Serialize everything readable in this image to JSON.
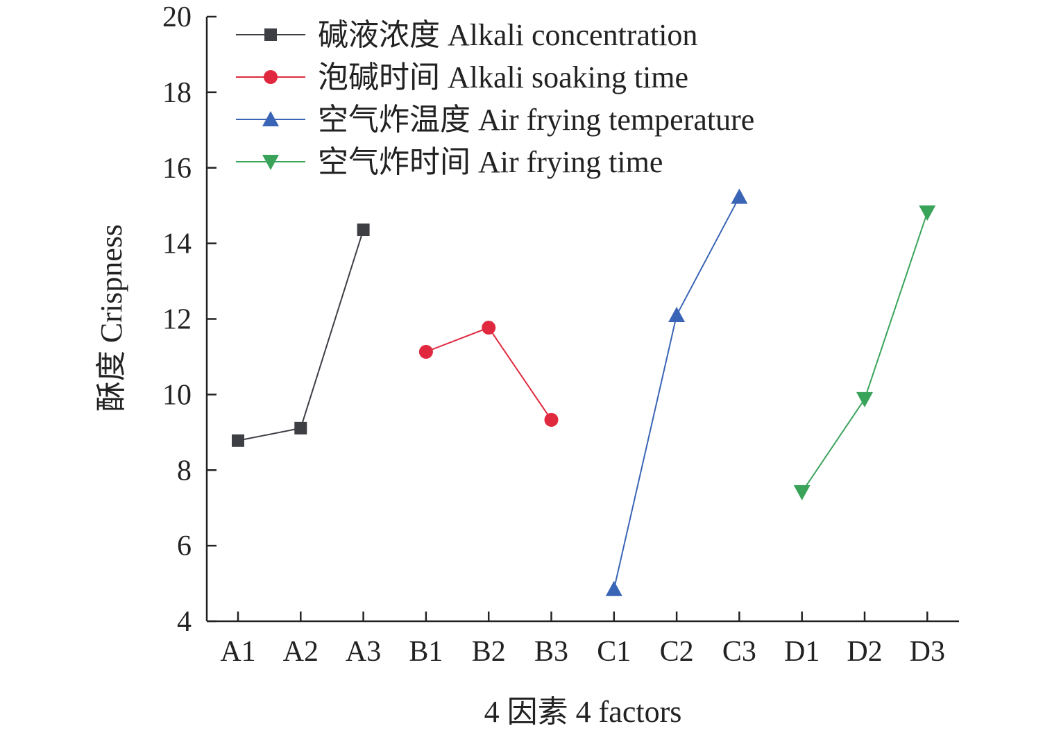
{
  "chart_data": {
    "type": "line",
    "xlabel": "4 因素 4 factors",
    "ylabel": "酥度 Crispness",
    "ylim": [
      4,
      20
    ],
    "yticks": [
      4,
      6,
      8,
      10,
      12,
      14,
      16,
      18,
      20
    ],
    "categories": [
      "A1",
      "A2",
      "A3",
      "B1",
      "B2",
      "B3",
      "C1",
      "C2",
      "C3",
      "D1",
      "D2",
      "D3"
    ],
    "legend_position": "top-left",
    "grid": false,
    "series": [
      {
        "name": "碱液浓度 Alkali concentration",
        "color": "#3d3f45",
        "marker": "square",
        "x": [
          "A1",
          "A2",
          "A3"
        ],
        "values": [
          8.78,
          9.11,
          14.36
        ]
      },
      {
        "name": "泡碱时间 Alkali soaking time",
        "color": "#e0293f",
        "marker": "circle",
        "x": [
          "B1",
          "B2",
          "B3"
        ],
        "values": [
          11.13,
          11.77,
          9.33
        ]
      },
      {
        "name": "空气炸温度 Air frying temperature",
        "color": "#3a64b5",
        "marker": "triangle-up",
        "x": [
          "C1",
          "C2",
          "C3"
        ],
        "values": [
          4.85,
          12.1,
          15.23
        ]
      },
      {
        "name": "空气炸时间 Air frying time",
        "color": "#3aa35a",
        "marker": "triangle-down",
        "x": [
          "D1",
          "D2",
          "D3"
        ],
        "values": [
          7.42,
          9.88,
          14.82
        ]
      }
    ]
  }
}
